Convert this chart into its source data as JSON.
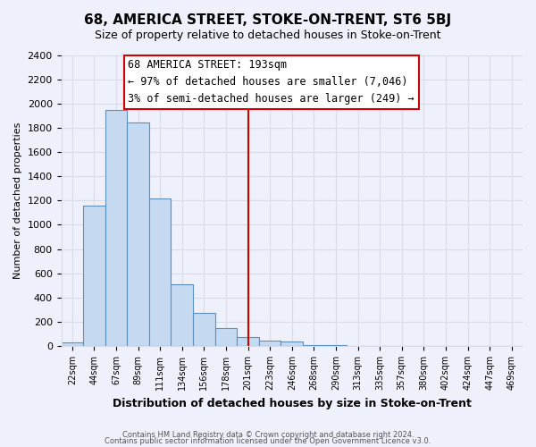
{
  "title": "68, AMERICA STREET, STOKE-ON-TRENT, ST6 5BJ",
  "subtitle": "Size of property relative to detached houses in Stoke-on-Trent",
  "xlabel": "Distribution of detached houses by size in Stoke-on-Trent",
  "ylabel": "Number of detached properties",
  "bin_labels": [
    "22sqm",
    "44sqm",
    "67sqm",
    "89sqm",
    "111sqm",
    "134sqm",
    "156sqm",
    "178sqm",
    "201sqm",
    "223sqm",
    "246sqm",
    "268sqm",
    "290sqm",
    "313sqm",
    "335sqm",
    "357sqm",
    "380sqm",
    "402sqm",
    "424sqm",
    "447sqm",
    "469sqm"
  ],
  "bar_heights": [
    30,
    1160,
    1950,
    1840,
    1220,
    510,
    270,
    150,
    75,
    45,
    35,
    10,
    5,
    3,
    2,
    1,
    1,
    0,
    0,
    0,
    0
  ],
  "bar_color": "#c5d9f0",
  "bar_edge_color": "#5a8fc0",
  "vline_x": 8.5,
  "vline_color": "#cc0000",
  "ylim": [
    0,
    2400
  ],
  "yticks": [
    0,
    200,
    400,
    600,
    800,
    1000,
    1200,
    1400,
    1600,
    1800,
    2000,
    2200,
    2400
  ],
  "annotation_title": "68 AMERICA STREET: 193sqm",
  "annotation_line1": "← 97% of detached houses are smaller (7,046)",
  "annotation_line2": "3% of semi-detached houses are larger (249) →",
  "annotation_box_color": "#ffffff",
  "annotation_box_edge": "#cc0000",
  "footer_line1": "Contains HM Land Registry data © Crown copyright and database right 2024.",
  "footer_line2": "Contains public sector information licensed under the Open Government Licence v3.0.",
  "bg_color": "#eef1fb",
  "grid_color": "#d8dce8",
  "title_fontsize": 11,
  "subtitle_fontsize": 9
}
